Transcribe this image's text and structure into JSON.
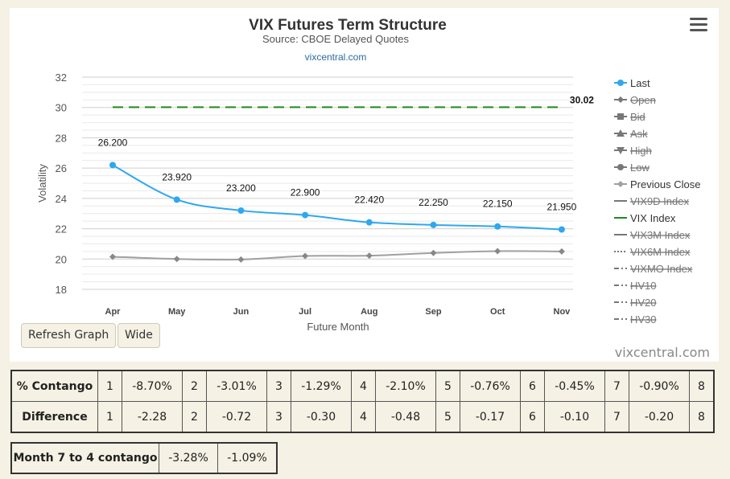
{
  "chart_data": {
    "type": "line",
    "title": "VIX Futures Term Structure",
    "subtitle": "Source: CBOE Delayed Quotes",
    "credit_link": "vixcentral.com",
    "xlabel": "Future Month",
    "ylabel": "Volatility",
    "categories": [
      "Apr",
      "May",
      "Jun",
      "Jul",
      "Aug",
      "Sep",
      "Oct",
      "Nov"
    ],
    "ylim": [
      18,
      32
    ],
    "yticks": [
      18,
      20,
      22,
      24,
      26,
      28,
      30,
      32
    ],
    "series": [
      {
        "name": "Last",
        "values": [
          26.2,
          23.92,
          23.2,
          22.9,
          22.42,
          22.25,
          22.15,
          21.95
        ],
        "labels": [
          "26.200",
          "23.920",
          "23.200",
          "22.900",
          "22.420",
          "22.250",
          "22.150",
          "21.950"
        ],
        "color": "#2ea8ef"
      },
      {
        "name": "Previous Close",
        "values": [
          20.15,
          20.0,
          19.97,
          20.2,
          20.22,
          20.4,
          20.52,
          20.5
        ],
        "color": "#a0a0a0"
      },
      {
        "name": "VIX Index",
        "values": [
          30.02,
          30.02,
          30.02,
          30.02,
          30.02,
          30.02,
          30.02,
          30.02
        ],
        "end_label": "30.02",
        "color": "#1f8a1f"
      }
    ],
    "legend": [
      {
        "name": "Last",
        "symbol": "circle",
        "line": "solid",
        "color": "#2ea8ef",
        "hidden": false
      },
      {
        "name": "Open",
        "symbol": "diamond",
        "line": "solid",
        "color": "#555555",
        "hidden": true
      },
      {
        "name": "Bid",
        "symbol": "square",
        "line": "solid",
        "color": "#555555",
        "hidden": true
      },
      {
        "name": "Ask",
        "symbol": "triangle",
        "line": "solid",
        "color": "#555555",
        "hidden": true
      },
      {
        "name": "High",
        "symbol": "triangle-down",
        "line": "solid",
        "color": "#555555",
        "hidden": true
      },
      {
        "name": "Low",
        "symbol": "circle",
        "line": "solid",
        "color": "#555555",
        "hidden": true
      },
      {
        "name": "Previous Close",
        "symbol": "diamond",
        "line": "solid",
        "color": "#a0a0a0",
        "hidden": false
      },
      {
        "name": "VIX9D Index",
        "symbol": "none",
        "line": "solid",
        "color": "#555555",
        "hidden": true
      },
      {
        "name": "VIX Index",
        "symbol": "none",
        "line": "solid",
        "color": "#1f8a1f",
        "hidden": false
      },
      {
        "name": "VIX3M Index",
        "symbol": "none",
        "line": "solid",
        "color": "#555555",
        "hidden": true
      },
      {
        "name": "VIX6M Index",
        "symbol": "none",
        "line": "dotted",
        "color": "#555555",
        "hidden": true
      },
      {
        "name": "VIXMO Index",
        "symbol": "none",
        "line": "dashdot",
        "color": "#555555",
        "hidden": true
      },
      {
        "name": "HV10",
        "symbol": "none",
        "line": "dashdot",
        "color": "#555555",
        "hidden": true
      },
      {
        "name": "HV20",
        "symbol": "none",
        "line": "dashdot",
        "color": "#555555",
        "hidden": true
      },
      {
        "name": "HV30",
        "symbol": "none",
        "line": "dashdot",
        "color": "#555555",
        "hidden": true
      }
    ],
    "grid": true,
    "legend_position": "right"
  },
  "buttons": {
    "refresh": "Refresh Graph",
    "wide": "Wide"
  },
  "brand": "vixcentral.com",
  "icons": {
    "menu": "hamburger-menu-icon"
  },
  "stats_table": {
    "rows": [
      {
        "label": "% Contango",
        "cells": [
          [
            "1",
            "-8.70%"
          ],
          [
            "2",
            "-3.01%"
          ],
          [
            "3",
            "-1.29%"
          ],
          [
            "4",
            "-2.10%"
          ],
          [
            "5",
            "-0.76%"
          ],
          [
            "6",
            "-0.45%"
          ],
          [
            "7",
            "-0.90%"
          ]
        ],
        "last": "8"
      },
      {
        "label": "Difference",
        "cells": [
          [
            "1",
            "-2.28"
          ],
          [
            "2",
            "-0.72"
          ],
          [
            "3",
            "-0.30"
          ],
          [
            "4",
            "-0.48"
          ],
          [
            "5",
            "-0.17"
          ],
          [
            "6",
            "-0.10"
          ],
          [
            "7",
            "-0.20"
          ]
        ],
        "last": "8"
      }
    ]
  },
  "contango_table": {
    "label": "Month 7 to 4 contango",
    "values": [
      "-3.28%",
      "-1.09%"
    ]
  }
}
